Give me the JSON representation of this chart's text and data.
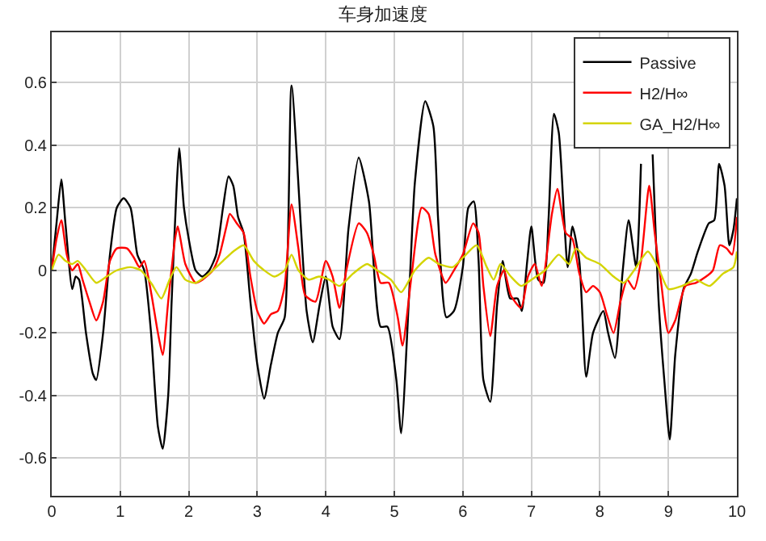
{
  "chart_data": {
    "type": "line",
    "title": "车身加速度",
    "xlim": [
      0,
      10
    ],
    "xticks": [
      0,
      1,
      2,
      3,
      4,
      5,
      6,
      7,
      8,
      9,
      10
    ],
    "ylim": [
      -0.72,
      0.76
    ],
    "yticks": [
      -0.6,
      -0.4,
      -0.2,
      0,
      0.2,
      0.4,
      0.6
    ],
    "grid": true,
    "legend": "top right",
    "series": [
      {
        "name": "Passive",
        "color": "#000000",
        "x": [
          0,
          0.07,
          0.14,
          0.2,
          0.3,
          0.35,
          0.4,
          0.5,
          0.6,
          0.65,
          0.75,
          0.85,
          0.95,
          1.05,
          1.15,
          1.25,
          1.35,
          1.45,
          1.55,
          1.62,
          1.7,
          1.75,
          1.82,
          1.86,
          1.93,
          2.0,
          2.1,
          2.2,
          2.3,
          2.4,
          2.5,
          2.58,
          2.65,
          2.72,
          2.8,
          2.9,
          3.0,
          3.1,
          3.2,
          3.3,
          3.4,
          3.5,
          3.72,
          3.81,
          3.91,
          4.0,
          4.1,
          4.2,
          4.33,
          4.48,
          4.63,
          4.8,
          4.9,
          5.03,
          5.1,
          5.22,
          5.3,
          5.45,
          5.57,
          5.64,
          5.76,
          5.87,
          6.0,
          6.08,
          6.16,
          6.23,
          6.3,
          6.4,
          6.5,
          6.58,
          6.69,
          6.8,
          6.86,
          6.94,
          7.0,
          7.1,
          7.18,
          7.25,
          7.33,
          7.4,
          7.48,
          7.53,
          7.6,
          7.7,
          7.8,
          7.9,
          8.05,
          8.12,
          8.22,
          8.33,
          8.42,
          8.53,
          8.6,
          8.7,
          8.77,
          8.86,
          8.94,
          9.02,
          9.1,
          9.22,
          9.33,
          9.43,
          9.59,
          9.67,
          9.74,
          9.82,
          9.89,
          9.95,
          10
        ],
        "values": [
          0,
          0.15,
          0.29,
          0.15,
          -0.06,
          -0.02,
          -0.03,
          -0.2,
          -0.33,
          -0.35,
          -0.2,
          0.05,
          0.2,
          0.23,
          0.2,
          0.05,
          0,
          -0.2,
          -0.5,
          -0.57,
          -0.4,
          -0.1,
          0.25,
          0.39,
          0.2,
          0.1,
          0,
          -0.02,
          0,
          0.05,
          0.2,
          0.3,
          0.27,
          0.17,
          0.12,
          -0.1,
          -0.3,
          -0.41,
          -0.3,
          -0.2,
          -0.15,
          0.59,
          -0.13,
          -0.23,
          -0.11,
          -0.02,
          -0.18,
          -0.22,
          0.13,
          0.36,
          0.22,
          -0.18,
          -0.18,
          -0.35,
          -0.52,
          -0.06,
          0.28,
          0.54,
          0.46,
          0.16,
          -0.15,
          -0.13,
          0.01,
          0.2,
          0.22,
          0.03,
          -0.35,
          -0.42,
          -0.11,
          0.03,
          -0.09,
          -0.09,
          -0.13,
          0.03,
          0.14,
          -0.03,
          -0.04,
          0.16,
          0.5,
          0.44,
          0.16,
          0.01,
          0.14,
          0.03,
          -0.34,
          -0.2,
          -0.13,
          -0.2,
          -0.28,
          -0.01,
          0.16,
          0.01,
          0.34,
          null,
          0.37,
          -0.11,
          -0.35,
          -0.54,
          -0.27,
          -0.06,
          -0.01,
          0.06,
          0.15,
          0.16,
          0.34,
          0.27,
          0.08,
          0.13,
          0.23
        ]
      },
      {
        "name": "H2/H∞",
        "color": "#ff0000",
        "x": [
          0,
          0.07,
          0.14,
          0.22,
          0.3,
          0.38,
          0.45,
          0.55,
          0.65,
          0.75,
          0.85,
          0.95,
          1.1,
          1.2,
          1.28,
          1.35,
          1.45,
          1.55,
          1.62,
          1.7,
          1.8,
          1.84,
          1.95,
          2.1,
          2.2,
          2.35,
          2.45,
          2.55,
          2.6,
          2.7,
          2.8,
          2.9,
          3.0,
          3.1,
          3.2,
          3.3,
          3.4,
          3.5,
          3.6,
          3.7,
          3.85,
          4.0,
          4.1,
          4.2,
          4.3,
          4.48,
          4.6,
          4.7,
          4.8,
          4.92,
          5.05,
          5.12,
          5.25,
          5.4,
          5.5,
          5.6,
          5.75,
          5.87,
          6.0,
          6.15,
          6.23,
          6.3,
          6.4,
          6.5,
          6.6,
          6.7,
          6.85,
          6.95,
          7.05,
          7.15,
          7.3,
          7.38,
          7.5,
          7.6,
          7.7,
          7.8,
          7.9,
          8.0,
          8.1,
          8.2,
          8.3,
          8.4,
          8.5,
          8.6,
          8.72,
          8.8,
          8.9,
          9.0,
          9.1,
          9.25,
          9.4,
          9.55,
          9.65,
          9.75,
          9.85,
          9.93,
          10
        ],
        "values": [
          0,
          0.1,
          0.16,
          0.05,
          0,
          0.02,
          -0.03,
          -0.1,
          -0.16,
          -0.1,
          0.03,
          0.07,
          0.07,
          0.04,
          0.01,
          0.03,
          -0.07,
          -0.2,
          -0.27,
          -0.1,
          0.1,
          0.14,
          0.02,
          -0.04,
          -0.03,
          0,
          0.05,
          0.14,
          0.18,
          0.15,
          0.12,
          -0.02,
          -0.13,
          -0.17,
          -0.14,
          -0.13,
          -0.05,
          0.21,
          0.07,
          -0.08,
          -0.1,
          0.03,
          -0.02,
          -0.12,
          0,
          0.15,
          0.12,
          0.05,
          -0.04,
          -0.04,
          -0.15,
          -0.24,
          -0.02,
          0.2,
          0.18,
          0.05,
          -0.04,
          0,
          0.05,
          0.15,
          0.12,
          -0.05,
          -0.21,
          -0.05,
          0,
          -0.08,
          -0.12,
          -0.02,
          0.02,
          -0.05,
          0.18,
          0.26,
          0.12,
          0.1,
          -0.01,
          -0.07,
          -0.05,
          -0.07,
          -0.14,
          -0.2,
          -0.1,
          -0.03,
          -0.06,
          0.03,
          0.27,
          0.12,
          -0.05,
          -0.2,
          -0.16,
          -0.05,
          -0.04,
          -0.02,
          0,
          0.08,
          0.07,
          0.05,
          0.17
        ]
      },
      {
        "name": "GA_H2/H∞",
        "color": "#d4d400",
        "x": [
          0,
          0.1,
          0.2,
          0.3,
          0.38,
          0.5,
          0.65,
          0.8,
          0.95,
          1.15,
          1.3,
          1.45,
          1.6,
          1.72,
          1.82,
          1.95,
          2.1,
          2.3,
          2.5,
          2.65,
          2.8,
          2.95,
          3.1,
          3.25,
          3.4,
          3.5,
          3.6,
          3.75,
          3.9,
          4.05,
          4.2,
          4.4,
          4.6,
          4.75,
          4.95,
          5.1,
          5.3,
          5.5,
          5.65,
          5.85,
          6.0,
          6.2,
          6.35,
          6.45,
          6.55,
          6.7,
          6.85,
          7.0,
          7.2,
          7.4,
          7.55,
          7.65,
          7.8,
          8.0,
          8.2,
          8.35,
          8.5,
          8.7,
          8.85,
          9.0,
          9.2,
          9.4,
          9.6,
          9.8,
          9.95,
          10
        ],
        "values": [
          0,
          0.05,
          0.03,
          0.02,
          0.03,
          0,
          -0.04,
          -0.02,
          0,
          0.01,
          0,
          -0.04,
          -0.09,
          -0.03,
          0.01,
          -0.03,
          -0.04,
          -0.01,
          0.03,
          0.06,
          0.08,
          0.03,
          0,
          -0.02,
          0,
          0.05,
          0,
          -0.03,
          -0.02,
          -0.03,
          -0.05,
          -0.01,
          0.02,
          0,
          -0.03,
          -0.07,
          0,
          0.04,
          0.02,
          0.01,
          0.04,
          0.08,
          0.01,
          -0.03,
          0.02,
          -0.02,
          -0.05,
          -0.03,
          0,
          0.05,
          0.02,
          0.07,
          0.04,
          0.02,
          -0.02,
          -0.04,
          0,
          0.06,
          0.01,
          -0.06,
          -0.05,
          -0.03,
          -0.05,
          -0.01,
          0.01,
          0.06
        ]
      }
    ]
  }
}
